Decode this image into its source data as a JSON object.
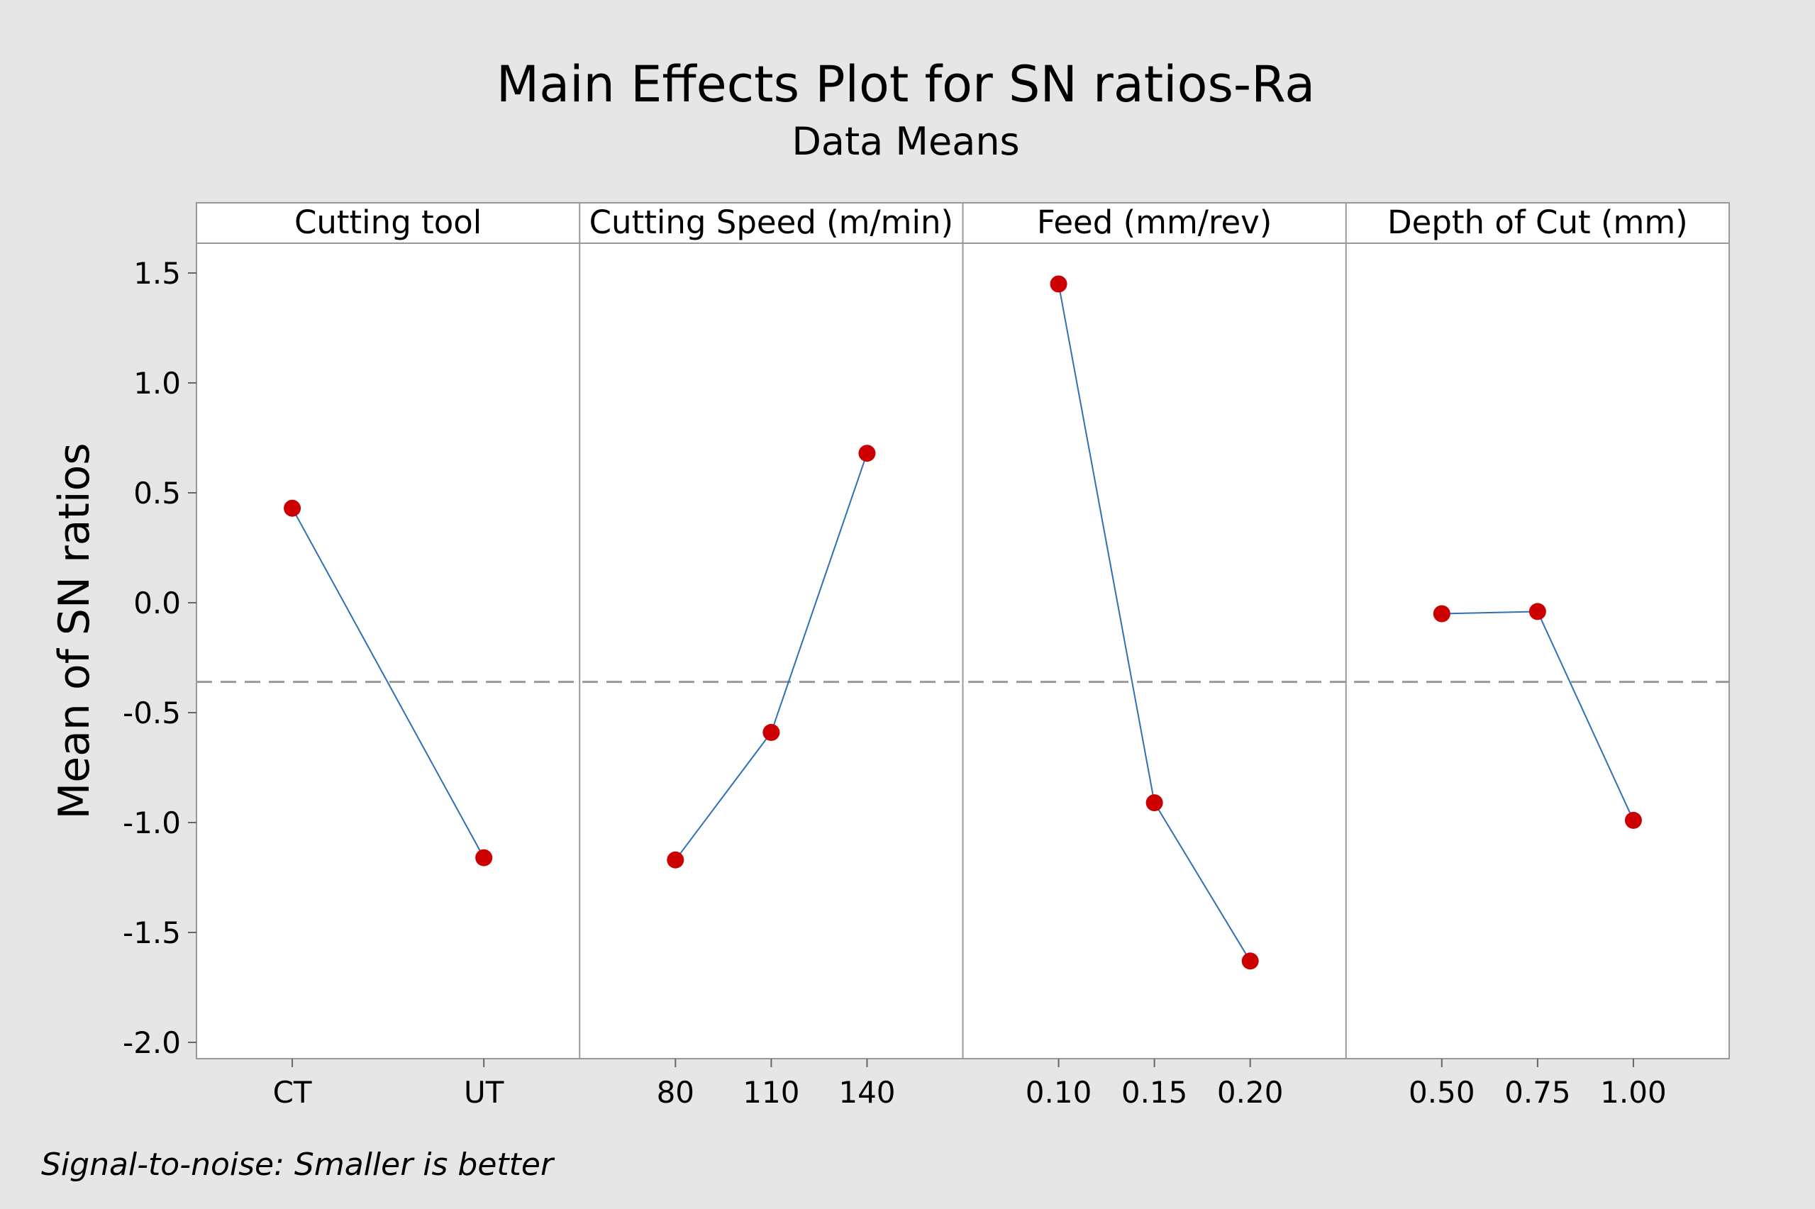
{
  "chart_data": {
    "type": "line",
    "title": "Main Effects Plot for SN ratios-Ra",
    "subtitle": "Data Means",
    "ylabel": "Mean of SN ratios",
    "ylim": [
      -2.1,
      1.65
    ],
    "yticks": [
      1.5,
      1.0,
      0.5,
      0.0,
      -0.5,
      -1.0,
      -1.5,
      -2.0
    ],
    "ytick_labels": [
      "1.5",
      "1.0",
      "0.5",
      "0.0",
      "-0.5",
      "-1.0",
      "-1.5",
      "-2.0"
    ],
    "reference_line": -0.36,
    "footnote": "Signal-to-noise: Smaller is better",
    "panels": [
      {
        "name": "Cutting tool",
        "levels": [
          "CT",
          "UT"
        ],
        "values": [
          0.43,
          -1.16
        ]
      },
      {
        "name": "Cutting Speed (m/min)",
        "levels": [
          "80",
          "110",
          "140"
        ],
        "values": [
          -1.17,
          -0.59,
          0.68
        ]
      },
      {
        "name": "Feed (mm/rev)",
        "levels": [
          "0.10",
          "0.15",
          "0.20"
        ],
        "values": [
          1.45,
          -0.91,
          -1.63
        ]
      },
      {
        "name": "Depth of Cut (mm)",
        "levels": [
          "0.50",
          "0.75",
          "1.00"
        ],
        "values": [
          -0.05,
          -0.04,
          -0.99
        ]
      }
    ],
    "colors": {
      "line": "#2f6fb5",
      "marker": "#cc0000",
      "reference": "#999999",
      "frame": "#999999"
    }
  }
}
